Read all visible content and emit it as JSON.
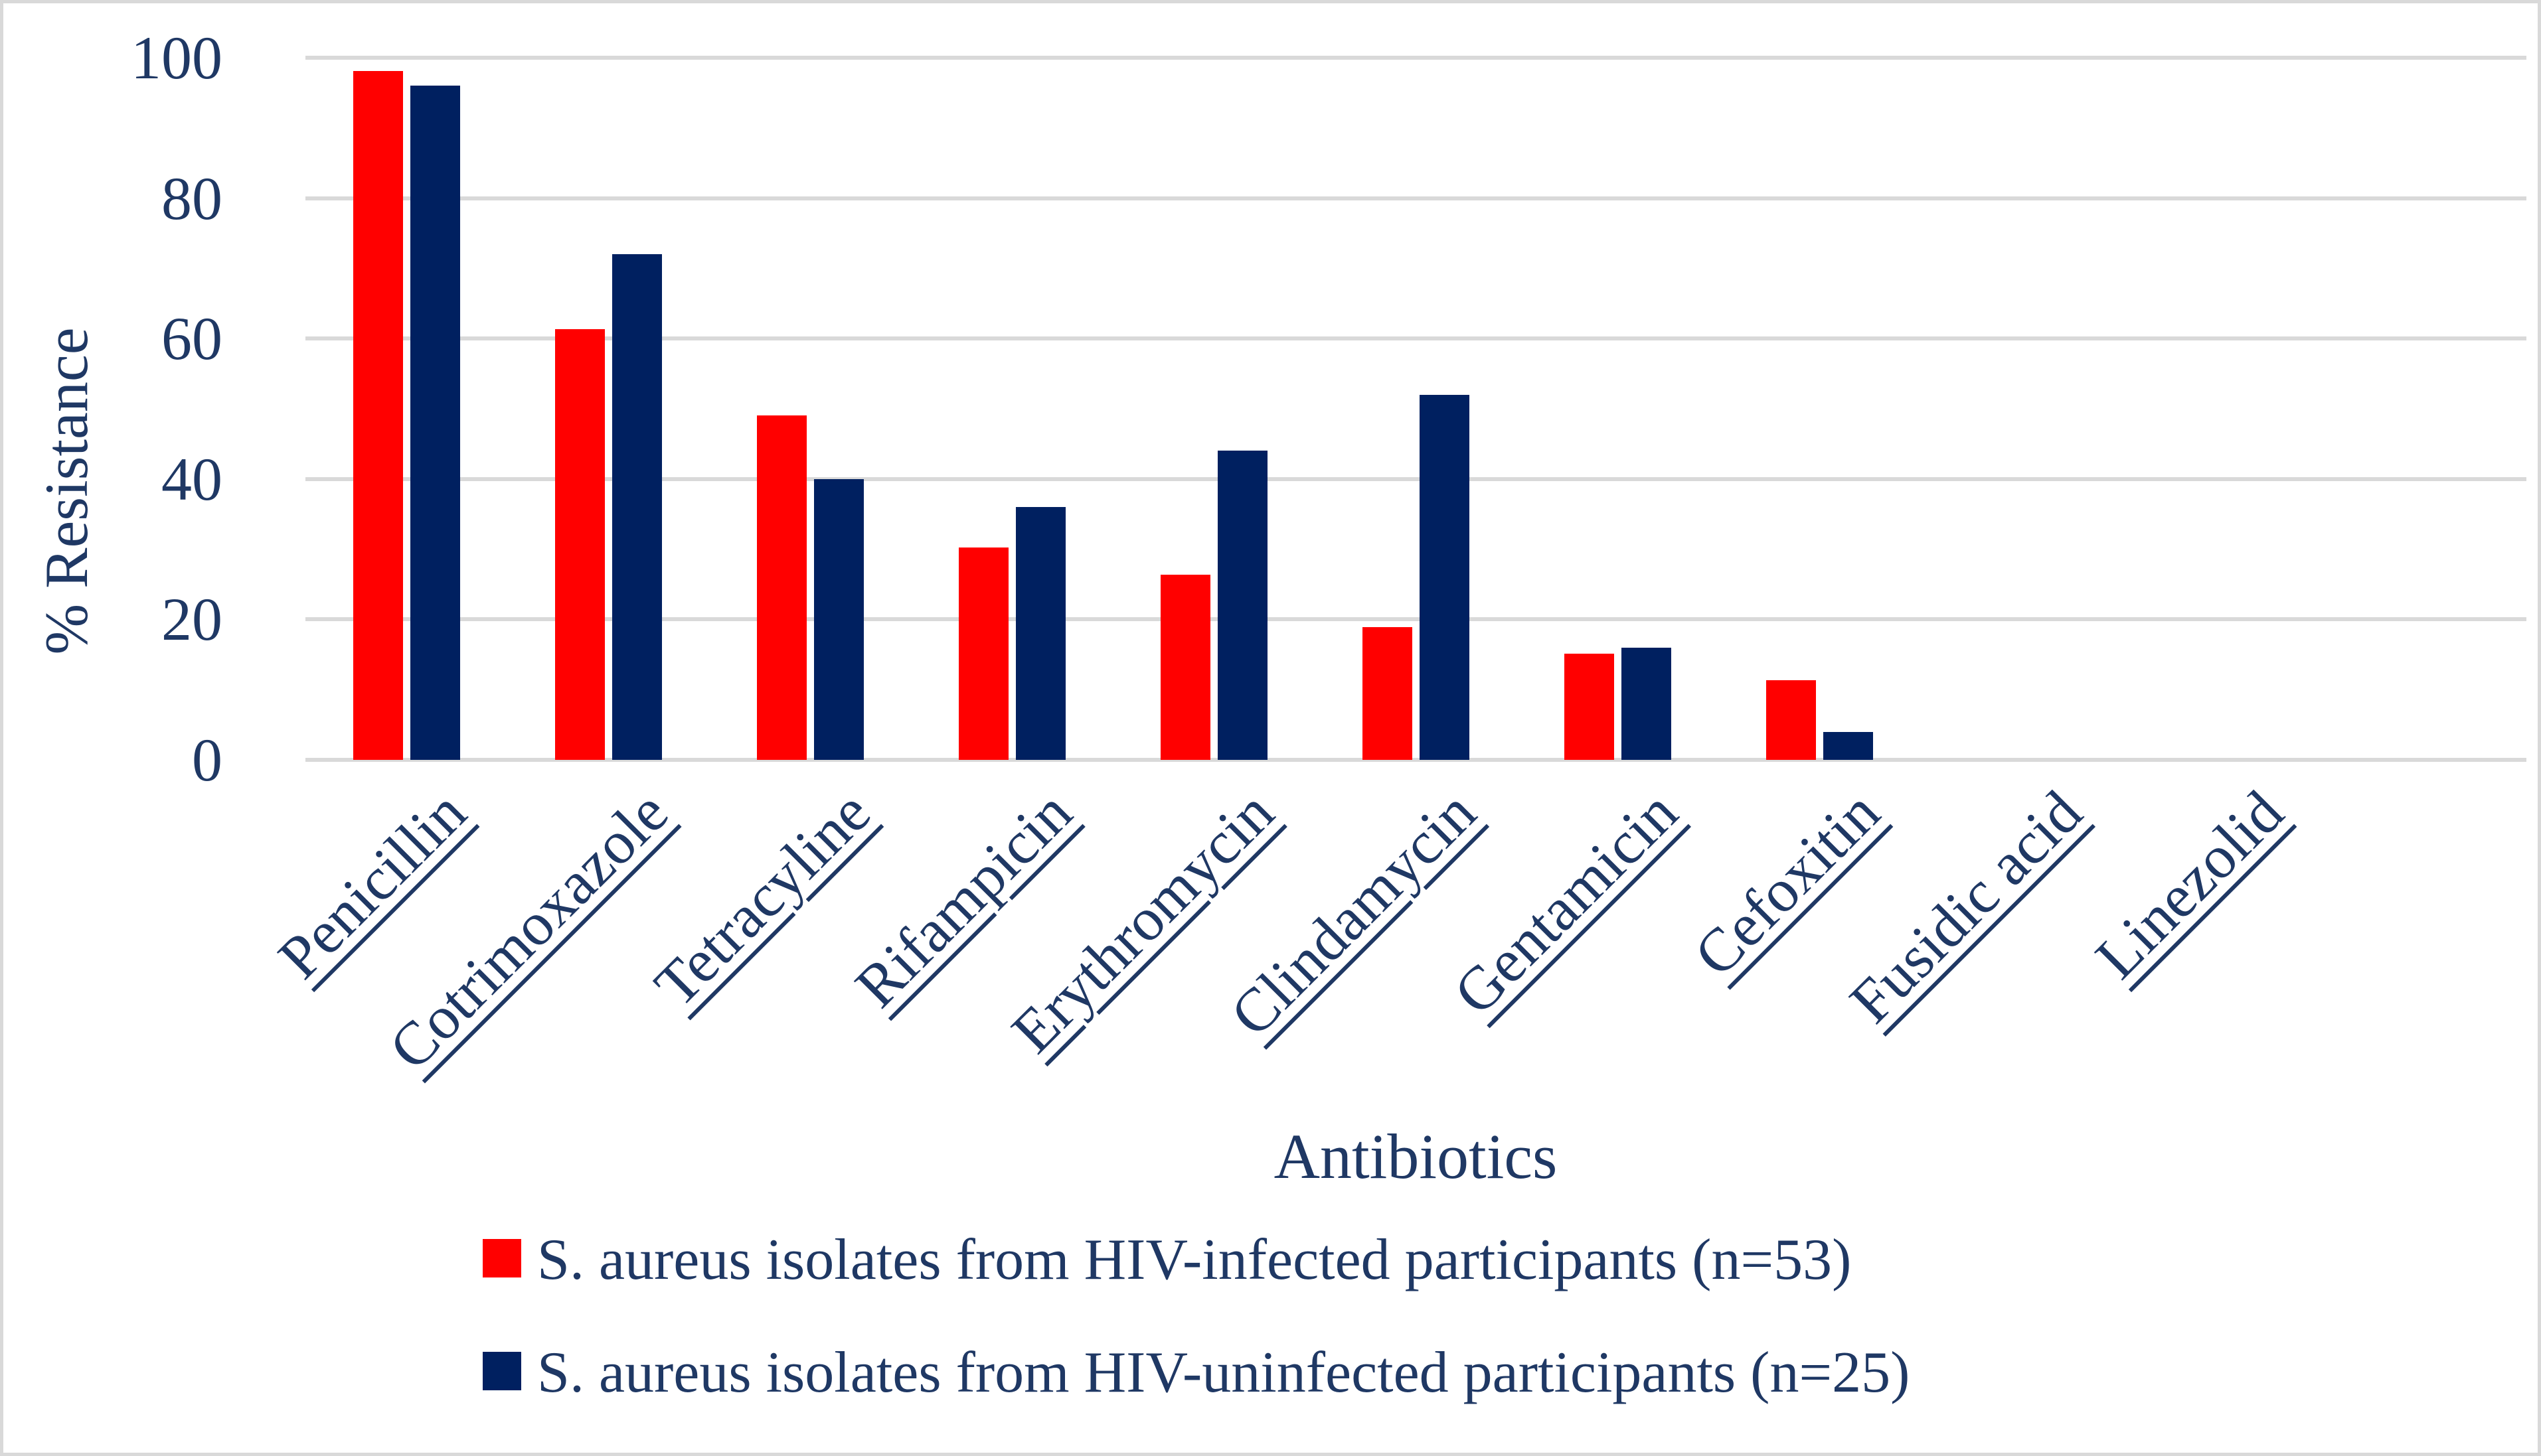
{
  "chart_data": {
    "type": "bar",
    "title": "",
    "categories": [
      "Penicillin",
      "Cotrimoxazole",
      "Tetracyline",
      "Rifampicin",
      "Erythromycin",
      "Clindamycin",
      "Gentamicin",
      "Cefoxitin",
      "Fusidic acid",
      "Linezolid"
    ],
    "series": [
      {
        "name": "S. aureus isolates from HIV-infected participants (n=53)",
        "color": "#ff0000",
        "values": [
          98.1,
          61.3,
          49.1,
          30.2,
          26.4,
          18.9,
          15.1,
          11.3,
          0,
          0
        ]
      },
      {
        "name": "S. aureus isolates from HIV-uninfected participants (n=25)",
        "color": "#002060",
        "values": [
          96,
          72,
          40,
          36,
          44,
          52,
          16,
          4,
          0,
          0
        ]
      }
    ],
    "xlabel": "Antibiotics",
    "ylabel": "% Resistance",
    "ylim": [
      0,
      100
    ],
    "yticks": [
      0,
      20,
      40,
      60,
      80,
      100
    ],
    "grid": true,
    "gridline_color": "#d9d9d9",
    "legend_position": "bottom",
    "category_label_angle": 45,
    "category_labels_underlined": true
  },
  "colors": {
    "background": "#ffffff",
    "border": "#d9d9d9",
    "text": "#1f3864",
    "series_infected": "#ff0000",
    "series_uninfected": "#002060"
  }
}
